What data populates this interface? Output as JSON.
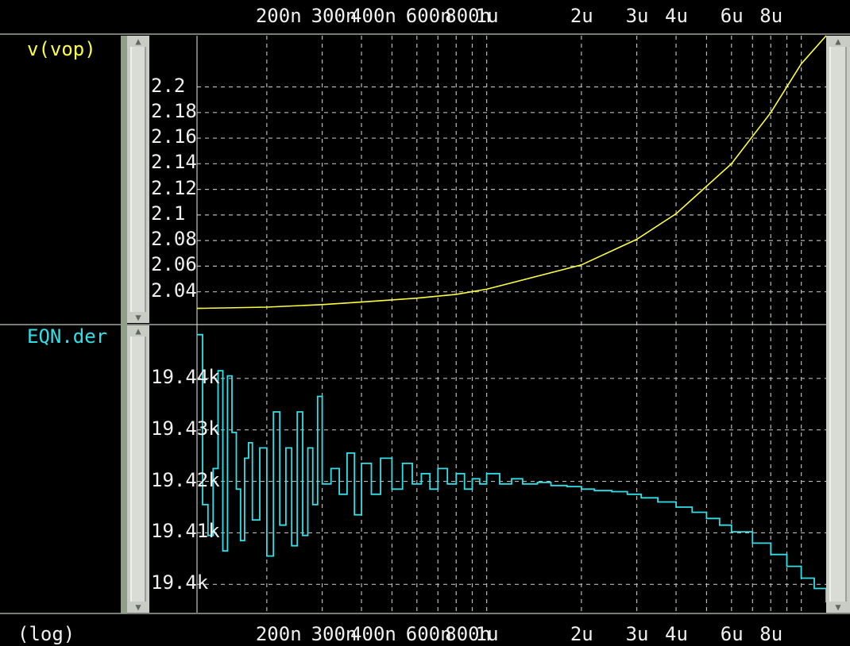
{
  "window": {
    "top_axis_ticks": [
      "200n",
      "300n",
      "400n",
      "600n",
      "800n",
      "1u",
      "2u",
      "3u",
      "4u",
      "6u",
      "8u"
    ],
    "bottom_axis_ticks": [
      "200n",
      "300n",
      "400n",
      "600n",
      "800n",
      "1u",
      "2u",
      "3u",
      "4u",
      "6u",
      "8u"
    ],
    "scale_label": "(log)"
  },
  "panels": {
    "top": {
      "trace_name": "v(vop)",
      "ytick_labels": [
        "2.2",
        "2.18",
        "2.16",
        "2.14",
        "2.12",
        "2.1",
        "2.08",
        "2.06",
        "2.04"
      ]
    },
    "bottom": {
      "trace_name": "EQN.der",
      "ytick_labels": [
        "19.44k",
        "19.43k",
        "19.42k",
        "19.41k",
        "19.4k"
      ]
    }
  },
  "colors": {
    "background": "#000000",
    "grid": "#b8b8b8",
    "text": "#f0f0f0",
    "trace_top": "#ffff40",
    "trace_bottom": "#30e0e8",
    "scrollbar": "#c8ccc4"
  },
  "chart_data": [
    {
      "type": "line",
      "title": "v(vop)",
      "xscale": "log",
      "xlim": [
        1.2e-07,
        1.2e-05
      ],
      "ylim": [
        2.015,
        2.24
      ],
      "series": [
        {
          "name": "v(vop)",
          "color": "#ffff40",
          "x": [
            1.2e-07,
            2e-07,
            3e-07,
            4e-07,
            6e-07,
            8e-07,
            1e-06,
            2e-06,
            3e-06,
            4e-06,
            6e-06,
            8e-06,
            1e-05,
            1.2e-05
          ],
          "y": [
            2.027,
            2.028,
            2.03,
            2.032,
            2.035,
            2.038,
            2.042,
            2.061,
            2.081,
            2.101,
            2.14,
            2.18,
            2.218,
            2.24
          ]
        }
      ]
    },
    {
      "type": "line",
      "title": "EQN.der",
      "xscale": "log",
      "xlim": [
        1.2e-07,
        1.2e-05
      ],
      "ylim": [
        19.3945,
        19.4503
      ],
      "series": [
        {
          "name": "EQN.der",
          "color": "#30e0e8",
          "x": [
            1.2e-07,
            1.25e-07,
            1.3e-07,
            1.35e-07,
            1.4e-07,
            1.45e-07,
            1.5e-07,
            1.55e-07,
            1.6e-07,
            1.65e-07,
            1.7e-07,
            1.75e-07,
            1.8e-07,
            1.9e-07,
            2e-07,
            2.1e-07,
            2.2e-07,
            2.3e-07,
            2.4e-07,
            2.5e-07,
            2.6e-07,
            2.7e-07,
            2.8e-07,
            2.9e-07,
            3e-07,
            3.2e-07,
            3.4e-07,
            3.6e-07,
            3.8e-07,
            4e-07,
            4.3e-07,
            4.6e-07,
            5e-07,
            5.4e-07,
            5.8e-07,
            6.2e-07,
            6.6e-07,
            7e-07,
            7.5e-07,
            8e-07,
            8.5e-07,
            9e-07,
            9.5e-07,
            1e-06,
            1.1e-06,
            1.2e-06,
            1.3e-06,
            1.45e-06,
            1.6e-06,
            1.8e-06,
            2e-06,
            2.2e-06,
            2.5e-06,
            2.8e-06,
            3.1e-06,
            3.5e-06,
            4e-06,
            4.5e-06,
            5e-06,
            5.5e-06,
            6e-06,
            7e-06,
            8e-06,
            9e-06,
            1e-05,
            1.1e-05,
            1.2e-05
          ],
          "y": [
            19.4485,
            19.4155,
            19.4095,
            19.4225,
            19.4415,
            19.4065,
            19.4405,
            19.4295,
            19.4185,
            19.4085,
            19.4245,
            19.4275,
            19.4125,
            19.4265,
            19.4055,
            19.4335,
            19.4115,
            19.4265,
            19.4075,
            19.4335,
            19.4095,
            19.4265,
            19.4155,
            19.4365,
            19.4195,
            19.4225,
            19.4175,
            19.4255,
            19.4135,
            19.4235,
            19.4175,
            19.4245,
            19.4185,
            19.4235,
            19.4195,
            19.4215,
            19.4185,
            19.4225,
            19.4195,
            19.4215,
            19.4185,
            19.4205,
            19.4195,
            19.4215,
            19.4195,
            19.4205,
            19.4195,
            19.4198,
            19.4192,
            19.419,
            19.4185,
            19.4182,
            19.418,
            19.4175,
            19.4168,
            19.416,
            19.415,
            19.414,
            19.4128,
            19.4115,
            19.4102,
            19.408,
            19.4058,
            19.4035,
            19.4012,
            19.3992,
            19.3965
          ]
        }
      ]
    }
  ]
}
